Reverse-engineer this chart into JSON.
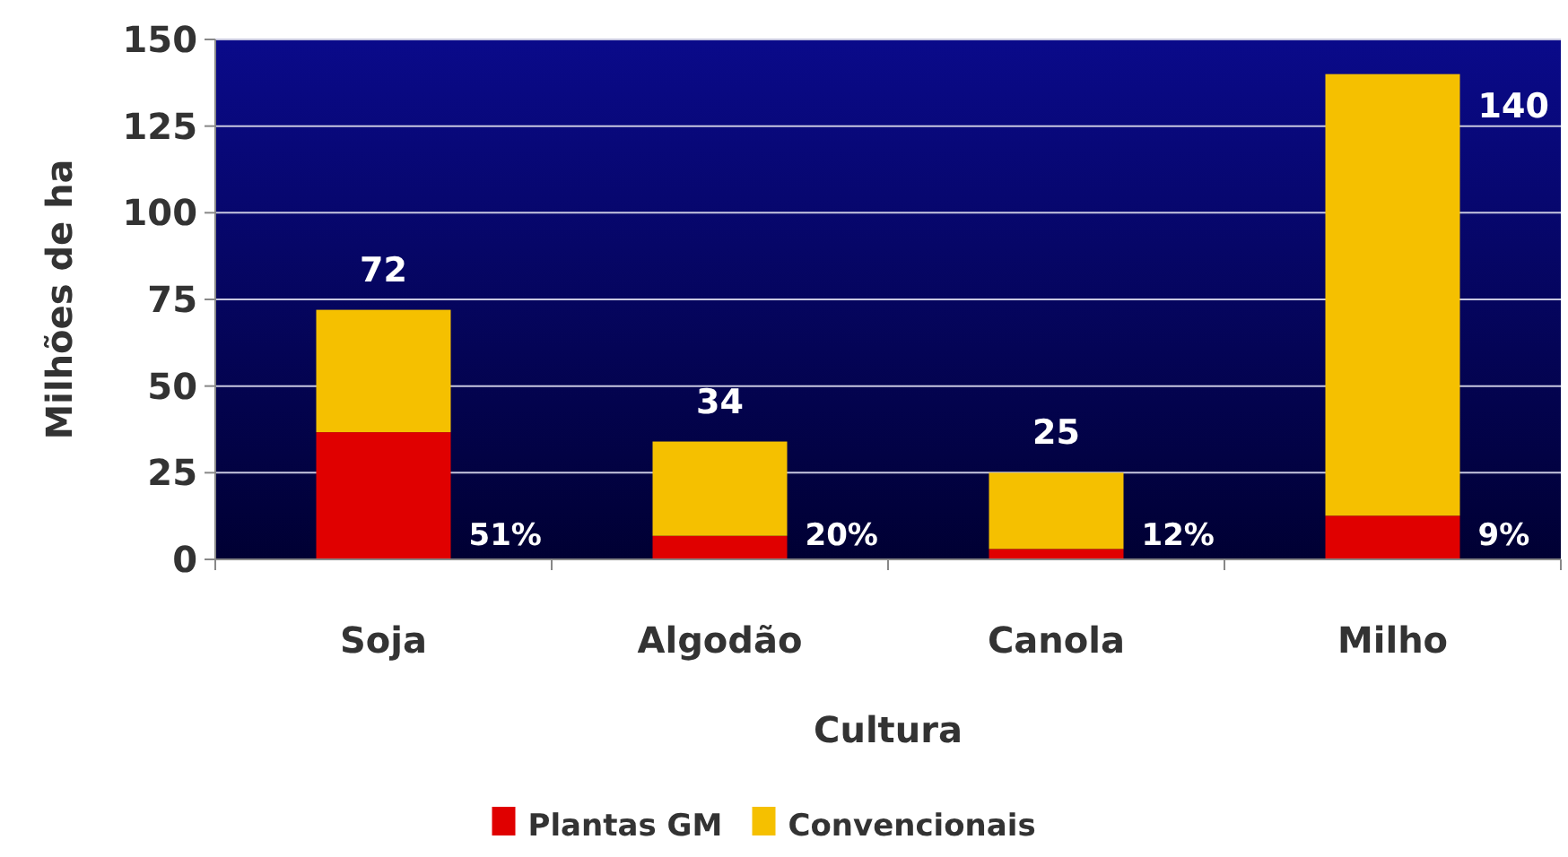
{
  "chart_data": {
    "type": "bar",
    "stacked": true,
    "xlabel": "Cultura",
    "ylabel": "Milhões de ha",
    "categories": [
      "Soja",
      "Algodão",
      "Canola",
      "Milho"
    ],
    "series": [
      {
        "name": "Plantas GM",
        "color": "#e00000",
        "values": [
          36.7,
          6.8,
          3,
          12.6
        ]
      },
      {
        "name": "Convencionais",
        "color": "#f5c000",
        "values": [
          35.3,
          27.2,
          22,
          127.4
        ]
      }
    ],
    "totals": [
      "72",
      "34",
      "25",
      "140"
    ],
    "annotations": [
      {
        "text": "51%",
        "x": "Soja",
        "y": 0
      },
      {
        "text": "20%",
        "x": "Algodão",
        "y": 0
      },
      {
        "text": "12%",
        "x": "Canola",
        "y": 0
      },
      {
        "text": "9%",
        "x": "Milho",
        "y": 0
      }
    ],
    "ylim": [
      0,
      150
    ],
    "yticks": [
      0,
      25,
      50,
      75,
      100,
      125,
      150
    ],
    "grid": "y",
    "legend": "bottom"
  }
}
